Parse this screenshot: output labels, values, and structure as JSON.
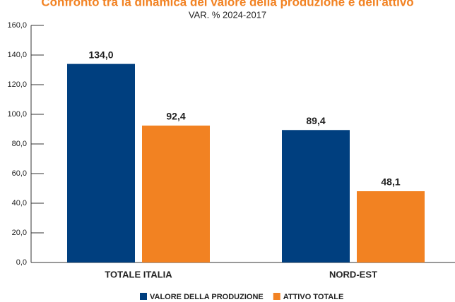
{
  "chart_data": {
    "type": "bar",
    "title": "Confronto tra la dinamica del valore della produzione e dell'attivo",
    "subtitle": "VAR. % 2024-2017",
    "categories": [
      "TOTALE ITALIA",
      "NORD-EST"
    ],
    "series": [
      {
        "name": "VALORE DELLA PRODUZIONE",
        "color": "#003f7f",
        "values": [
          134.0,
          89.4
        ],
        "value_labels": [
          "134,0",
          "89,4"
        ]
      },
      {
        "name": "ATTIVO TOTALE",
        "color": "#f28222",
        "values": [
          92.4,
          48.1
        ],
        "value_labels": [
          "92,4",
          "48,1"
        ]
      }
    ],
    "ylim": [
      0,
      160
    ],
    "yticks": [
      {
        "value": 0,
        "label": "0,0"
      },
      {
        "value": 20,
        "label": "20,0"
      },
      {
        "value": 40,
        "label": "40,0"
      },
      {
        "value": 60,
        "label": "60,0"
      },
      {
        "value": 80,
        "label": "80,0"
      },
      {
        "value": 100,
        "label": "100,0"
      },
      {
        "value": 120,
        "label": "120,0"
      },
      {
        "value": 140,
        "label": "140,0"
      },
      {
        "value": 160,
        "label": "160,0"
      }
    ],
    "legend": "bottom"
  }
}
